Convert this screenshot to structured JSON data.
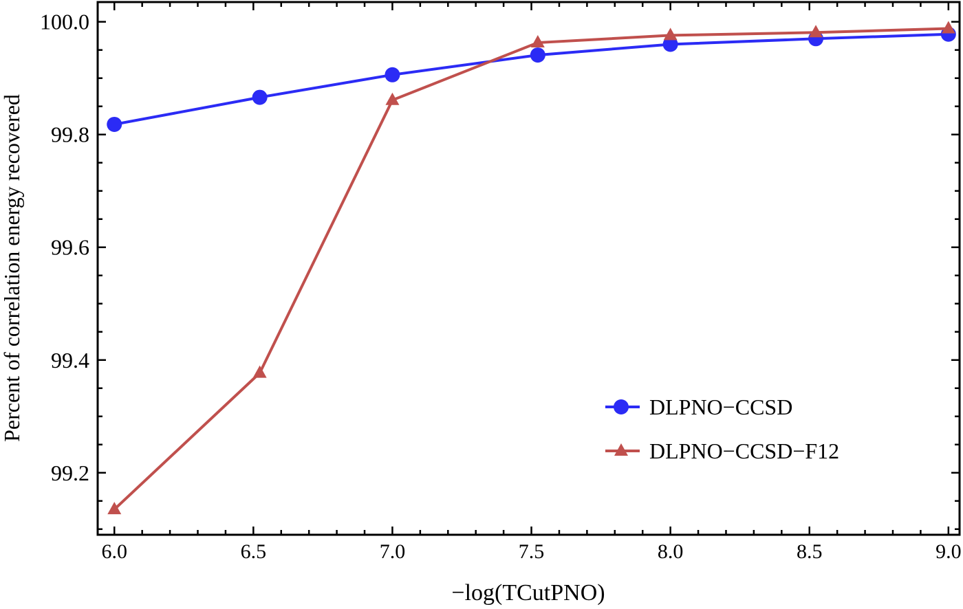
{
  "chart_data": {
    "type": "line",
    "title": "",
    "xlabel": "−log(TCutPNO)",
    "ylabel": "Percent of correlation energy recovered",
    "xlim": [
      5.94,
      9.04
    ],
    "ylim": [
      99.09,
      100.035
    ],
    "xticks": [
      6.0,
      6.5,
      7.0,
      7.5,
      8.0,
      8.5,
      9.0
    ],
    "xtick_labels": [
      "6.0",
      "6.5",
      "7.0",
      "7.5",
      "8.0",
      "8.5",
      "9.0"
    ],
    "yticks": [
      99.2,
      99.4,
      99.6,
      99.8,
      100.0
    ],
    "ytick_labels": [
      "99.2",
      "99.4",
      "99.6",
      "99.8",
      "100.0"
    ],
    "grid": false,
    "legend_position": "bottom-right",
    "x": [
      6.0,
      6.523,
      7.0,
      7.523,
      8.0,
      8.523,
      9.0
    ],
    "series": [
      {
        "name": "DLPNO−CCSD",
        "color": "#2b2bf5",
        "marker": "circle",
        "values": [
          99.818,
          99.866,
          99.906,
          99.941,
          99.96,
          99.97,
          99.978
        ]
      },
      {
        "name": "DLPNO−CCSD−F12",
        "color": "#c0504d",
        "marker": "triangle",
        "values": [
          99.135,
          99.377,
          99.861,
          99.963,
          99.976,
          99.981,
          99.988
        ]
      }
    ]
  }
}
